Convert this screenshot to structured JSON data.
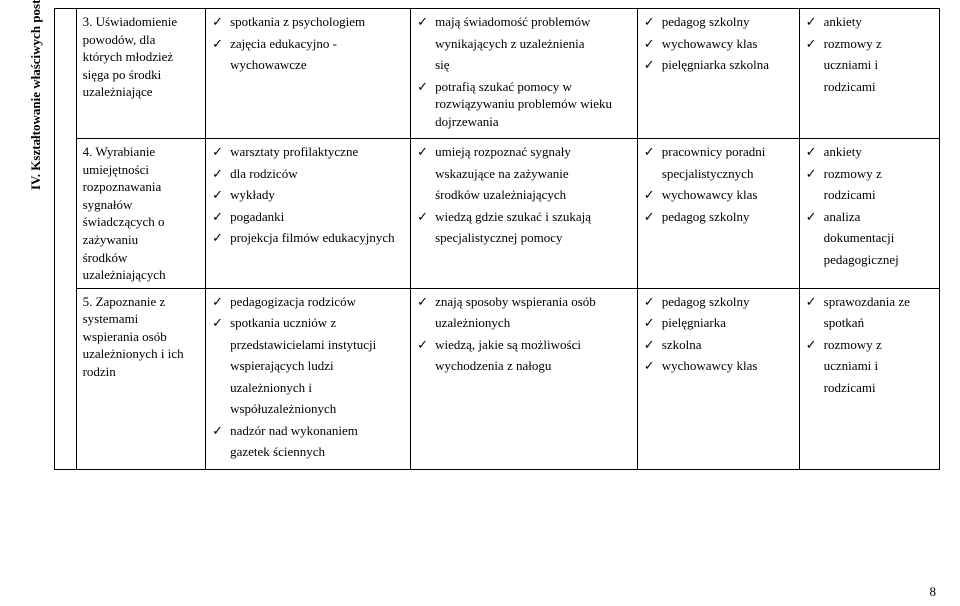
{
  "vertical_label": "IV. Kształtowanie właściwych postaw wobec zagrożeń związanych z",
  "page_number": "8",
  "rows": [
    {
      "num": "3.",
      "c1_lines": [
        "Uświadomienie",
        "powodów, dla",
        "których młodzież",
        "sięga po środki",
        "uzależniające"
      ],
      "c2": [
        {
          "t": "spotkania z  psychologiem",
          "ck": true
        },
        {
          "t": "zajęcia edukacyjno -",
          "ck": true
        },
        {
          "t": "wychowawcze",
          "ck": false
        }
      ],
      "c3": [
        {
          "t": "mają świadomość problemów",
          "ck": true
        },
        {
          "t": "wynikających z uzależnienia",
          "ck": false
        },
        {
          "t": "się",
          "ck": false
        },
        {
          "t": "potrafią szukać pomocy w rozwiązywaniu problemów wieku dojrzewania",
          "ck": true
        }
      ],
      "c4": [
        {
          "t": "pedagog szkolny",
          "ck": true
        },
        {
          "t": "wychowawcy klas",
          "ck": true
        },
        {
          "t": "pielęgniarka szkolna",
          "ck": true
        }
      ],
      "c5": [
        {
          "t": "ankiety",
          "ck": true
        },
        {
          "t": "rozmowy z",
          "ck": true
        },
        {
          "t": "uczniami i",
          "ck": false
        },
        {
          "t": "rodzicami",
          "ck": false
        }
      ]
    },
    {
      "num": "4.",
      "c1_lines": [
        "Wyrabianie",
        "umiejętności",
        "rozpoznawania",
        "sygnałów",
        "świadczących o",
        "zażywaniu",
        "środków",
        "uzależniających"
      ],
      "c2": [
        {
          "t": "warsztaty profilaktyczne",
          "ck": true
        },
        {
          "t": "dla rodziców",
          "ck": true
        },
        {
          "t": "wykłady",
          "ck": true
        },
        {
          "t": "pogadanki",
          "ck": true
        },
        {
          "t": "projekcja filmów edukacyjnych",
          "ck": true
        }
      ],
      "c3": [
        {
          "t": "umieją rozpoznać sygnały",
          "ck": true
        },
        {
          "t": "wskazujące na zażywanie",
          "ck": false
        },
        {
          "t": "środków uzależniających",
          "ck": false
        },
        {
          "t": "wiedzą gdzie szukać i szukają",
          "ck": true
        },
        {
          "t": "specjalistycznej pomocy",
          "ck": false
        }
      ],
      "c4": [
        {
          "t": "pracownicy poradni",
          "ck": true
        },
        {
          "t": "specjalistycznych",
          "ck": false
        },
        {
          "t": "wychowawcy klas",
          "ck": true
        },
        {
          "t": "pedagog szkolny",
          "ck": true
        }
      ],
      "c5": [
        {
          "t": "ankiety",
          "ck": true
        },
        {
          "t": "rozmowy z",
          "ck": true
        },
        {
          "t": "rodzicami",
          "ck": false
        },
        {
          "t": "analiza",
          "ck": true
        },
        {
          "t": "dokumentacji",
          "ck": false
        },
        {
          "t": "pedagogicznej",
          "ck": false
        }
      ]
    },
    {
      "num": "5.",
      "c1_lines": [
        "Zapoznanie z",
        "systemami",
        "wspierania osób",
        "uzależnionych i ich",
        "rodzin"
      ],
      "c2": [
        {
          "t": "pedagogizacja rodziców",
          "ck": true
        },
        {
          "t": "spotkania uczniów z",
          "ck": true
        },
        {
          "t": "przedstawicielami instytucji",
          "ck": false
        },
        {
          "t": "wspierających ludzi",
          "ck": false
        },
        {
          "t": "uzależnionych i",
          "ck": false
        },
        {
          "t": "współuzależnionych",
          "ck": false
        },
        {
          "t": "nadzór nad wykonaniem",
          "ck": true
        },
        {
          "t": "gazetek ściennych",
          "ck": false
        }
      ],
      "c3": [
        {
          "t": "znają sposoby wspierania osób",
          "ck": true
        },
        {
          "t": "uzależnionych",
          "ck": false
        },
        {
          "t": "wiedzą, jakie są możliwości",
          "ck": true
        },
        {
          "t": "wychodzenia z nałogu",
          "ck": false
        }
      ],
      "c4": [
        {
          "t": "pedagog szkolny",
          "ck": true
        },
        {
          "t": "pielęgniarka",
          "ck": true
        },
        {
          "t": "szkolna",
          "ck": true
        },
        {
          "t": "wychowawcy klas",
          "ck": true
        }
      ],
      "c5": [
        {
          "t": "sprawozdania ze",
          "ck": true
        },
        {
          "t": "spotkań",
          "ck": false
        },
        {
          "t": "rozmowy z",
          "ck": true
        },
        {
          "t": "uczniami i",
          "ck": false
        },
        {
          "t": "rodzicami",
          "ck": false
        }
      ]
    }
  ]
}
